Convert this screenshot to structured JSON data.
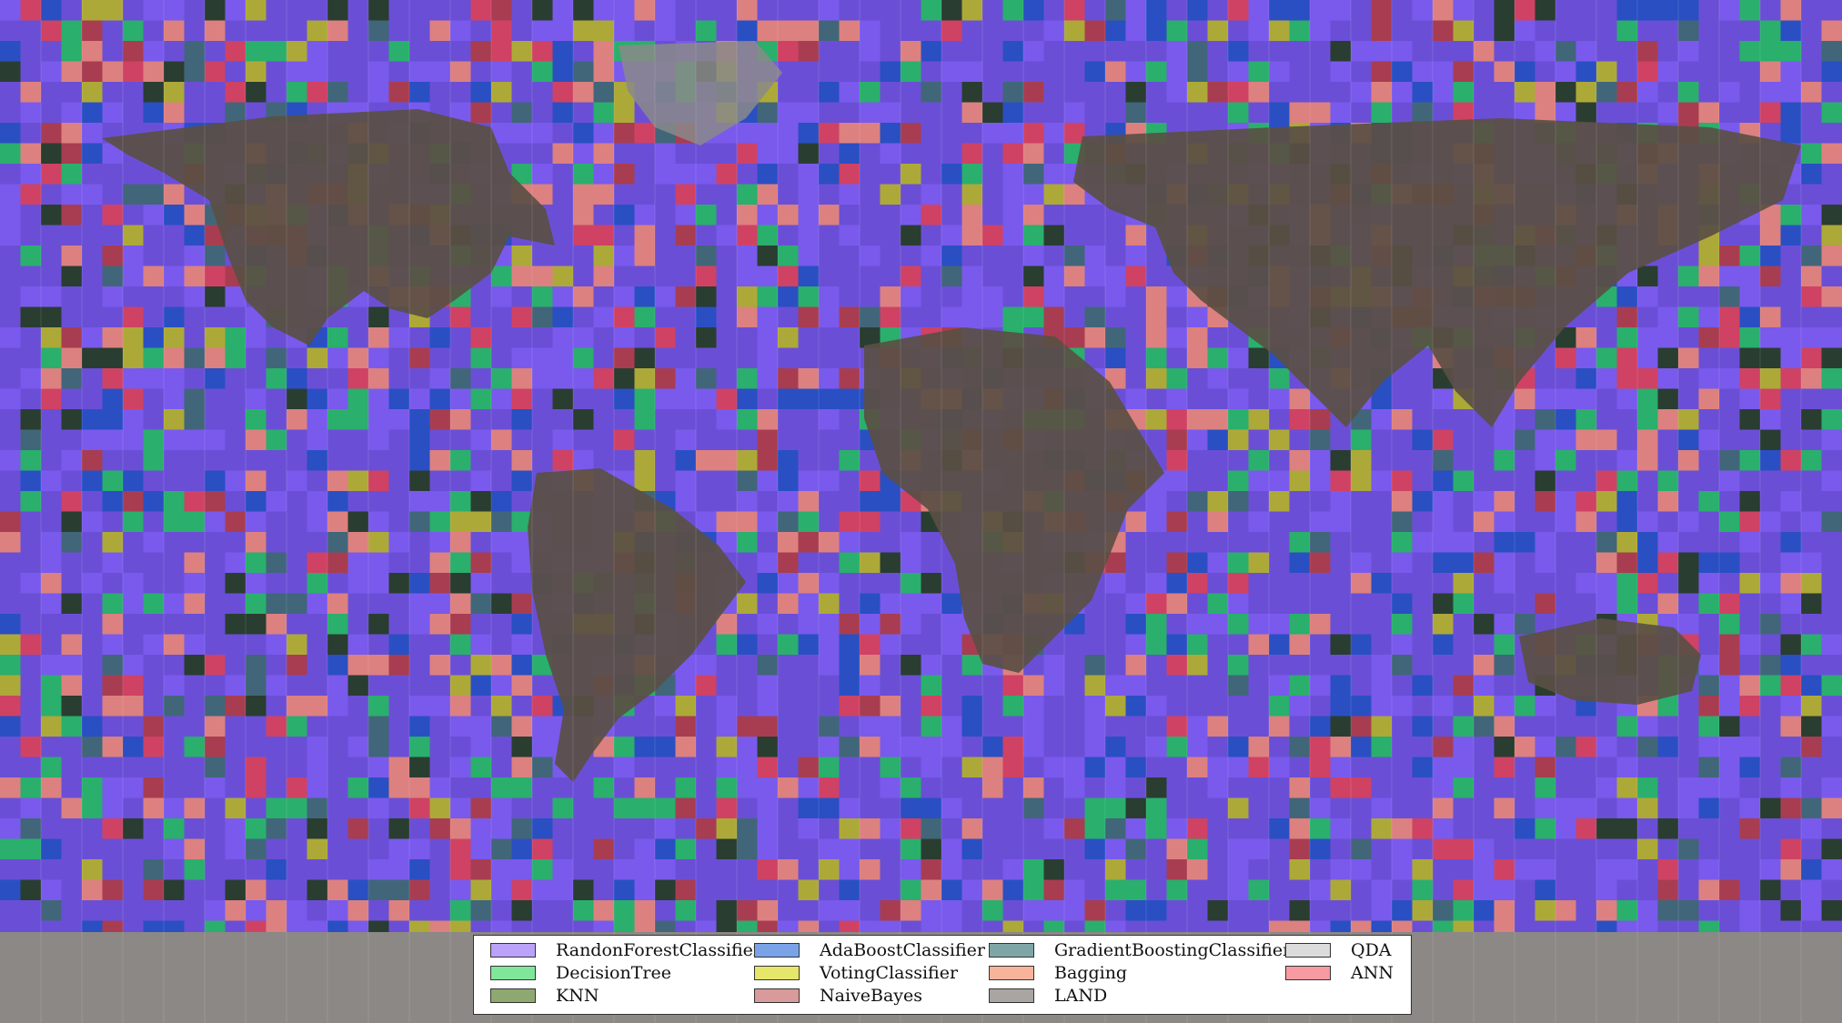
{
  "map": {
    "projection": "equirectangular",
    "grid": "5-degree cells",
    "cell_colors": {
      "RandomForest": "#7b5cf0",
      "DecisionTree": "#1fbf5a",
      "KNN": "#1f3a14",
      "AdaBoost": "#1e4fc0",
      "Voting": "#b8b81c",
      "NaiveBayes": "#b33a3a",
      "GradientBoosting": "#3a6a6a",
      "Bagging": "#f08a70",
      "LAND": "#7e7a76",
      "QDA": "#cfcfcf",
      "ANN": "#e04050"
    }
  },
  "legend": {
    "items": [
      {
        "label": "RandonForestClassifier",
        "color": "#b9a2f7"
      },
      {
        "label": "DecisionTree",
        "color": "#7fe69a"
      },
      {
        "label": "KNN",
        "color": "#8fa870"
      },
      {
        "label": "AdaBoostClassifier",
        "color": "#7aa2e6"
      },
      {
        "label": "VotingClassifier",
        "color": "#e6e66a"
      },
      {
        "label": "NaiveBayes",
        "color": "#d89a9a"
      },
      {
        "label": "GradientBoostingClassifier",
        "color": "#7fa6a6"
      },
      {
        "label": "Bagging",
        "color": "#f7b49a"
      },
      {
        "label": "LAND",
        "color": "#a8a5a2"
      },
      {
        "label": "QDA",
        "color": "#dcdcdc"
      },
      {
        "label": "ANN",
        "color": "#f79aa2"
      }
    ]
  }
}
